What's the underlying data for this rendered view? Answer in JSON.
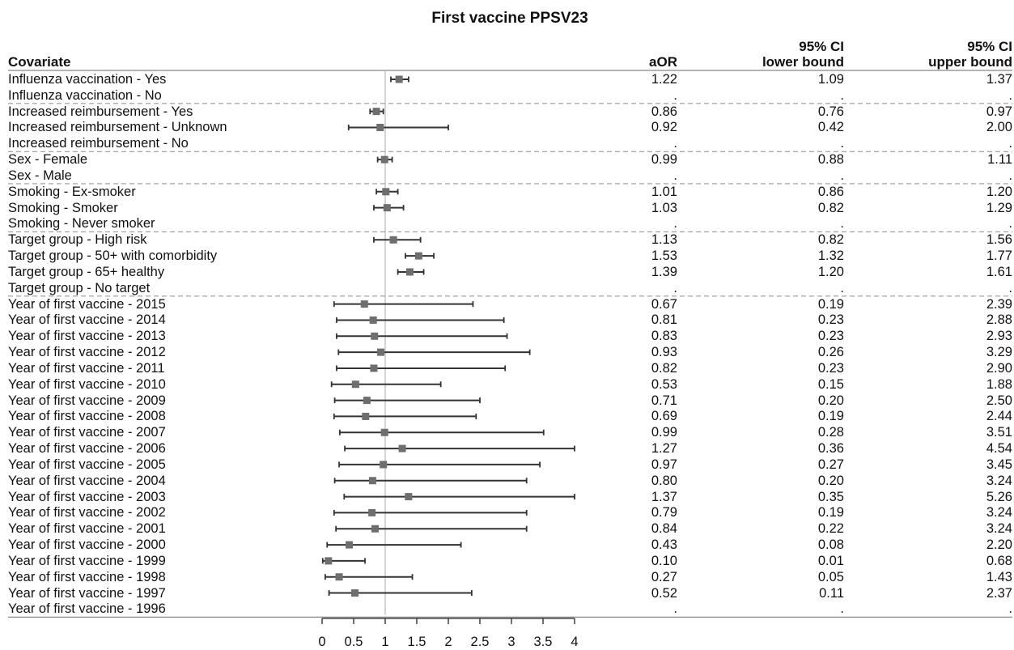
{
  "chart_data": {
    "type": "forest",
    "title": "First vaccine PPSV23",
    "columns": {
      "covariate": "Covariate",
      "aor": "aOR",
      "lower_line1": "95% CI",
      "lower_line2": "lower bound",
      "upper_line1": "95% CI",
      "upper_line2": "upper bound"
    },
    "xlim": [
      0,
      4
    ],
    "x_ticks": [
      "0",
      "0.5",
      "1",
      "1.5",
      "2",
      "2.5",
      "3",
      "3.5",
      "4"
    ],
    "reference_line": 1,
    "rows": [
      {
        "label": "Influenza vaccination - Yes",
        "aor": "1.22",
        "lower": "1.09",
        "upper": "1.37"
      },
      {
        "label": "Influenza vaccination - No",
        "aor": ".",
        "lower": ".",
        "upper": ".",
        "sep": true
      },
      {
        "label": "Increased reimbursement - Yes",
        "aor": "0.86",
        "lower": "0.76",
        "upper": "0.97"
      },
      {
        "label": "Increased reimbursement - Unknown",
        "aor": "0.92",
        "lower": "0.42",
        "upper": "2.00"
      },
      {
        "label": "Increased reimbursement - No",
        "aor": ".",
        "lower": ".",
        "upper": ".",
        "sep": true
      },
      {
        "label": "Sex - Female",
        "aor": "0.99",
        "lower": "0.88",
        "upper": "1.11"
      },
      {
        "label": "Sex - Male",
        "aor": ".",
        "lower": ".",
        "upper": ".",
        "sep": true
      },
      {
        "label": "Smoking - Ex-smoker",
        "aor": "1.01",
        "lower": "0.86",
        "upper": "1.20"
      },
      {
        "label": "Smoking - Smoker",
        "aor": "1.03",
        "lower": "0.82",
        "upper": "1.29"
      },
      {
        "label": "Smoking - Never smoker",
        "aor": ".",
        "lower": ".",
        "upper": ".",
        "sep": true
      },
      {
        "label": "Target group - High risk",
        "aor": "1.13",
        "lower": "0.82",
        "upper": "1.56"
      },
      {
        "label": "Target group - 50+ with comorbidity",
        "aor": "1.53",
        "lower": "1.32",
        "upper": "1.77"
      },
      {
        "label": "Target group - 65+ healthy",
        "aor": "1.39",
        "lower": "1.20",
        "upper": "1.61"
      },
      {
        "label": "Target group - No target",
        "aor": ".",
        "lower": ".",
        "upper": ".",
        "sep": true
      },
      {
        "label": "Year of first vaccine - 2015",
        "aor": "0.67",
        "lower": "0.19",
        "upper": "2.39"
      },
      {
        "label": "Year of first vaccine - 2014",
        "aor": "0.81",
        "lower": "0.23",
        "upper": "2.88"
      },
      {
        "label": "Year of first vaccine - 2013",
        "aor": "0.83",
        "lower": "0.23",
        "upper": "2.93"
      },
      {
        "label": "Year of first vaccine - 2012",
        "aor": "0.93",
        "lower": "0.26",
        "upper": "3.29"
      },
      {
        "label": "Year of first vaccine - 2011",
        "aor": "0.82",
        "lower": "0.23",
        "upper": "2.90"
      },
      {
        "label": "Year of first vaccine - 2010",
        "aor": "0.53",
        "lower": "0.15",
        "upper": "1.88"
      },
      {
        "label": "Year of first vaccine - 2009",
        "aor": "0.71",
        "lower": "0.20",
        "upper": "2.50"
      },
      {
        "label": "Year of first vaccine - 2008",
        "aor": "0.69",
        "lower": "0.19",
        "upper": "2.44"
      },
      {
        "label": "Year of first vaccine - 2007",
        "aor": "0.99",
        "lower": "0.28",
        "upper": "3.51"
      },
      {
        "label": "Year of first vaccine - 2006",
        "aor": "1.27",
        "lower": "0.36",
        "upper": "4.54"
      },
      {
        "label": "Year of first vaccine - 2005",
        "aor": "0.97",
        "lower": "0.27",
        "upper": "3.45"
      },
      {
        "label": "Year of first vaccine - 2004",
        "aor": "0.80",
        "lower": "0.20",
        "upper": "3.24"
      },
      {
        "label": "Year of first vaccine - 2003",
        "aor": "1.37",
        "lower": "0.35",
        "upper": "5.26"
      },
      {
        "label": "Year of first vaccine - 2002",
        "aor": "0.79",
        "lower": "0.19",
        "upper": "3.24"
      },
      {
        "label": "Year of first vaccine - 2001",
        "aor": "0.84",
        "lower": "0.22",
        "upper": "3.24"
      },
      {
        "label": "Year of first vaccine - 2000",
        "aor": "0.43",
        "lower": "0.08",
        "upper": "2.20"
      },
      {
        "label": "Year of first vaccine - 1999",
        "aor": "0.10",
        "lower": "0.01",
        "upper": "0.68"
      },
      {
        "label": "Year of first vaccine - 1998",
        "aor": "0.27",
        "lower": "0.05",
        "upper": "1.43"
      },
      {
        "label": "Year of first vaccine - 1997",
        "aor": "0.52",
        "lower": "0.11",
        "upper": "2.37"
      },
      {
        "label": "Year of first vaccine - 1996",
        "aor": ".",
        "lower": ".",
        "upper": "."
      }
    ],
    "colors": {
      "marker": "#6e6e6e",
      "ci_line": "#333333",
      "reference": "#bdbdbd",
      "rule": "#888888",
      "separator": "#9a9a9a"
    }
  }
}
